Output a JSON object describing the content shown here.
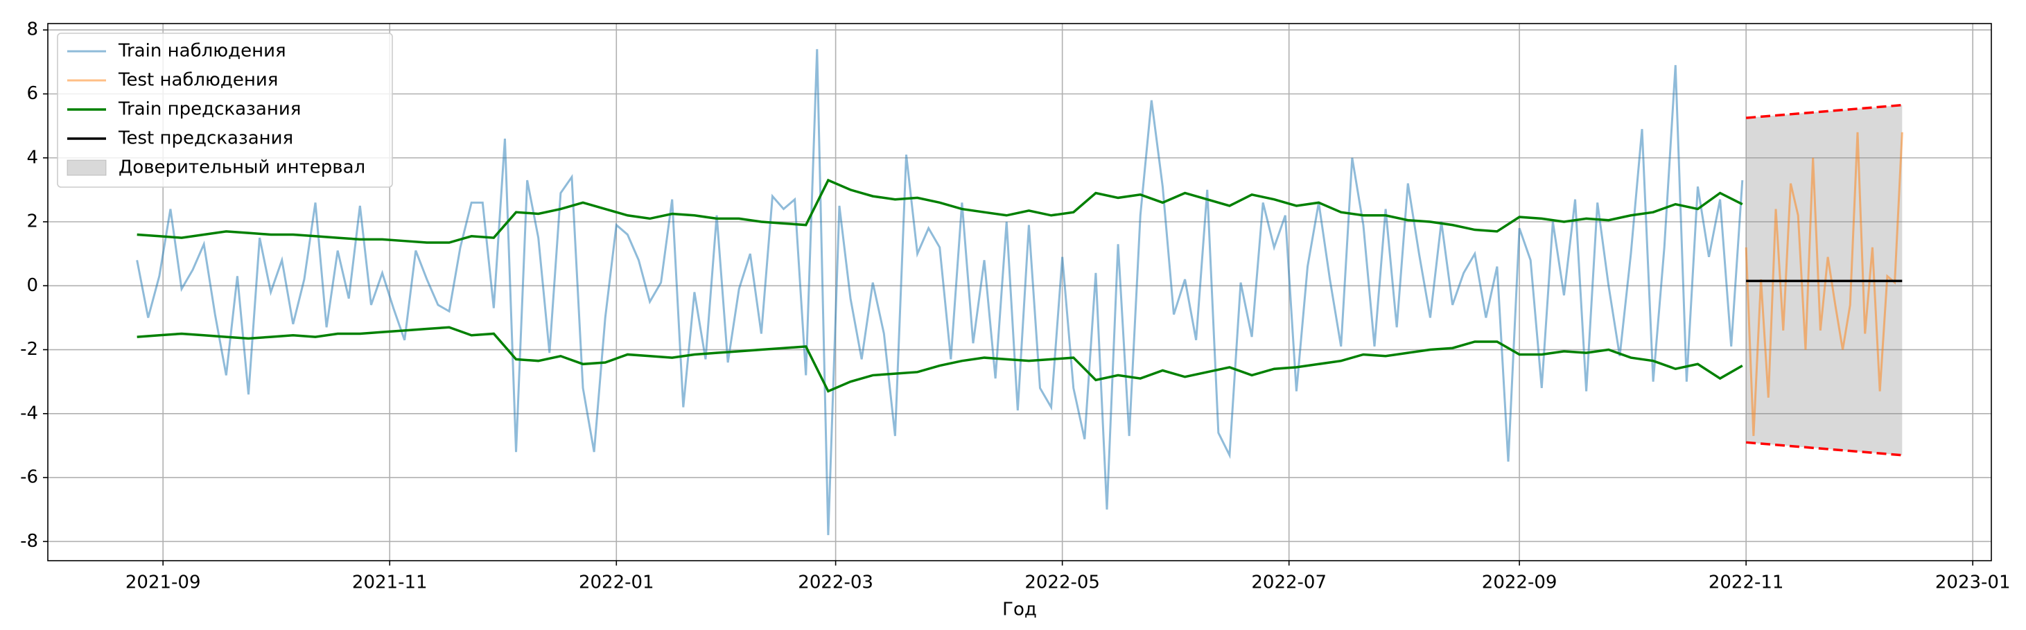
{
  "chart_data": {
    "type": "line",
    "xlabel": "Год",
    "xlim": [
      18840,
      19363
    ],
    "xticks": [
      {
        "value": 18871,
        "label": "2021-09"
      },
      {
        "value": 18932,
        "label": "2021-11"
      },
      {
        "value": 18993,
        "label": "2022-01"
      },
      {
        "value": 19052,
        "label": "2022-03"
      },
      {
        "value": 19113,
        "label": "2022-05"
      },
      {
        "value": 19174,
        "label": "2022-07"
      },
      {
        "value": 19236,
        "label": "2022-09"
      },
      {
        "value": 19297,
        "label": "2022-11"
      },
      {
        "value": 19358,
        "label": "2023-01"
      }
    ],
    "ylim": [
      -8.6,
      8.2
    ],
    "yticks": [
      -8,
      -6,
      -4,
      -2,
      0,
      2,
      4,
      6,
      8
    ],
    "grid": true,
    "legend": "upper left",
    "series": [
      {
        "name": "Train наблюдения",
        "color": "#1f77b4",
        "opacity": 0.5,
        "x": [
          18864,
          18867,
          18870,
          18873,
          18876,
          18879,
          18882,
          18885,
          18888,
          18891,
          18894,
          18897,
          18900,
          18903,
          18906,
          18909,
          18912,
          18915,
          18918,
          18921,
          18924,
          18927,
          18930,
          18933,
          18936,
          18939,
          18942,
          18945,
          18948,
          18951,
          18954,
          18957,
          18960,
          18963,
          18966,
          18969,
          18972,
          18975,
          18978,
          18981,
          18984,
          18987,
          18990,
          18993,
          18996,
          18999,
          19002,
          19005,
          19008,
          19011,
          19014,
          19017,
          19020,
          19023,
          19026,
          19029,
          19032,
          19035,
          19038,
          19041,
          19044,
          19047,
          19050,
          19053,
          19056,
          19059,
          19062,
          19065,
          19068,
          19071,
          19074,
          19077,
          19080,
          19083,
          19086,
          19089,
          19092,
          19095,
          19098,
          19101,
          19104,
          19107,
          19110,
          19113,
          19116,
          19119,
          19122,
          19125,
          19128,
          19131,
          19134,
          19137,
          19140,
          19143,
          19146,
          19149,
          19152,
          19155,
          19158,
          19161,
          19164,
          19167,
          19170,
          19173,
          19176,
          19179,
          19182,
          19185,
          19188,
          19191,
          19194,
          19197,
          19200,
          19203,
          19206,
          19209,
          19212,
          19215,
          19218,
          19221,
          19224,
          19227,
          19230,
          19233,
          19236,
          19239,
          19242,
          19245,
          19248,
          19251,
          19254,
          19257,
          19260,
          19263,
          19266,
          19269,
          19272,
          19275,
          19278,
          19281,
          19284,
          19287,
          19290,
          19293,
          19296
        ],
        "values": [
          0.8,
          -1.0,
          0.3,
          2.4,
          -0.1,
          0.5,
          1.3,
          -0.9,
          -2.8,
          0.3,
          -3.4,
          1.5,
          -0.2,
          0.8,
          -1.2,
          0.2,
          2.6,
          -1.3,
          1.1,
          -0.4,
          2.5,
          -0.6,
          0.4,
          -0.7,
          -1.7,
          1.1,
          0.2,
          -0.6,
          -0.8,
          1.2,
          2.6,
          2.6,
          -0.7,
          4.6,
          -5.2,
          3.3,
          1.5,
          -2.1,
          2.9,
          3.4,
          -3.2,
          -5.2,
          -1.0,
          1.9,
          1.6,
          0.8,
          -0.5,
          0.1,
          2.7,
          -3.8,
          -0.2,
          -2.3,
          2.2,
          -2.4,
          -0.1,
          1.0,
          -1.5,
          2.8,
          2.4,
          2.7,
          -2.8,
          7.4,
          -7.8,
          2.5,
          -0.4,
          -2.3,
          0.1,
          -1.5,
          -4.7,
          4.1,
          1.0,
          1.8,
          1.2,
          -2.3,
          2.6,
          -1.8,
          0.8,
          -2.9,
          2.0,
          -3.9,
          1.9,
          -3.2,
          -3.8,
          0.9,
          -3.2,
          -4.8,
          0.4,
          -7.0,
          1.3,
          -4.7,
          2.2,
          5.8,
          3.1,
          -0.9,
          0.2,
          -1.7,
          3.0,
          -4.6,
          -5.3,
          0.1,
          -1.6,
          2.6,
          1.2,
          2.2,
          -3.3,
          0.6,
          2.6,
          0.2,
          -1.9,
          4.0,
          1.9,
          -1.9,
          2.4,
          -1.3,
          3.2,
          1.0,
          -1.0,
          2.0,
          -0.6,
          0.4,
          1.0,
          -1.0,
          0.6,
          -5.5,
          1.8,
          0.8,
          -3.2,
          2.0,
          -0.3,
          2.7,
          -3.3,
          2.6,
          0.0,
          -2.2,
          1.0,
          4.9,
          -3.0,
          1.2,
          6.9,
          -3.0,
          3.1,
          0.9,
          2.7,
          -1.9,
          3.3
        ]
      },
      {
        "name": "Test наблюдения",
        "color": "#ff7f0e",
        "opacity": 0.5,
        "x": [
          19297,
          19299,
          19301,
          19303,
          19305,
          19307,
          19309,
          19311,
          19313,
          19315,
          19317,
          19319,
          19321,
          19323,
          19325,
          19327,
          19329,
          19331,
          19333,
          19335,
          19337,
          19339
        ],
        "values": [
          1.2,
          -4.7,
          0.2,
          -3.5,
          2.4,
          -1.4,
          3.2,
          2.2,
          -2.0,
          4.0,
          -1.4,
          0.9,
          -0.6,
          -2.0,
          -0.6,
          4.8,
          -1.5,
          1.2,
          -3.3,
          0.3,
          0.1,
          4.8
        ]
      },
      {
        "name": "Train предсказания",
        "color": "green",
        "opacity": 1,
        "x": [
          18864,
          18870,
          18876,
          18882,
          18888,
          18894,
          18900,
          18906,
          18912,
          18918,
          18924,
          18930,
          18936,
          18942,
          18948,
          18954,
          18960,
          18966,
          18972,
          18978,
          18984,
          18990,
          18996,
          19002,
          19008,
          19014,
          19020,
          19026,
          19032,
          19038,
          19044,
          19050,
          19056,
          19062,
          19068,
          19074,
          19080,
          19086,
          19092,
          19098,
          19104,
          19110,
          19116,
          19122,
          19128,
          19134,
          19140,
          19146,
          19152,
          19158,
          19164,
          19170,
          19176,
          19182,
          19188,
          19194,
          19200,
          19206,
          19212,
          19218,
          19224,
          19230,
          19236,
          19242,
          19248,
          19254,
          19260,
          19266,
          19272,
          19278,
          19284,
          19290,
          19296
        ],
        "values": [
          1.6,
          1.55,
          1.5,
          1.6,
          1.7,
          1.65,
          1.6,
          1.6,
          1.55,
          1.5,
          1.45,
          1.45,
          1.4,
          1.35,
          1.35,
          1.55,
          1.5,
          2.3,
          2.25,
          2.4,
          2.6,
          2.4,
          2.2,
          2.1,
          2.25,
          2.2,
          2.1,
          2.1,
          2.0,
          1.95,
          1.9,
          3.3,
          3.0,
          2.8,
          2.7,
          2.75,
          2.6,
          2.4,
          2.3,
          2.2,
          2.35,
          2.2,
          2.3,
          2.9,
          2.75,
          2.85,
          2.6,
          2.9,
          2.7,
          2.5,
          2.85,
          2.7,
          2.5,
          2.6,
          2.3,
          2.2,
          2.2,
          2.05,
          2.0,
          1.9,
          1.75,
          1.7,
          2.15,
          2.1,
          2.0,
          2.1,
          2.05,
          2.2,
          2.3,
          2.55,
          2.4,
          2.9,
          2.55
        ],
        "lower": [
          -1.6,
          -1.55,
          -1.5,
          -1.55,
          -1.6,
          -1.65,
          -1.6,
          -1.55,
          -1.6,
          -1.5,
          -1.5,
          -1.45,
          -1.4,
          -1.35,
          -1.3,
          -1.55,
          -1.5,
          -2.3,
          -2.35,
          -2.2,
          -2.45,
          -2.4,
          -2.15,
          -2.2,
          -2.25,
          -2.15,
          -2.1,
          -2.05,
          -2.0,
          -1.95,
          -1.9,
          -3.3,
          -3.0,
          -2.8,
          -2.75,
          -2.7,
          -2.5,
          -2.35,
          -2.25,
          -2.3,
          -2.35,
          -2.3,
          -2.25,
          -2.95,
          -2.8,
          -2.9,
          -2.65,
          -2.85,
          -2.7,
          -2.55,
          -2.8,
          -2.6,
          -2.55,
          -2.45,
          -2.35,
          -2.15,
          -2.2,
          -2.1,
          -2.0,
          -1.95,
          -1.75,
          -1.75,
          -2.15,
          -2.15,
          -2.05,
          -2.1,
          -2.0,
          -2.25,
          -2.35,
          -2.6,
          -2.45,
          -2.9,
          -2.5
        ]
      },
      {
        "name": "Test предсказания",
        "color": "black",
        "opacity": 1,
        "x": [
          19297,
          19339
        ],
        "values": [
          0.15,
          0.15
        ]
      }
    ],
    "interval": {
      "name": "Доверительный интервал",
      "color": "gray",
      "bound_color": "red",
      "x": [
        19297,
        19339
      ],
      "upper": [
        5.25,
        5.65
      ],
      "lower": [
        -4.9,
        -5.3
      ]
    }
  }
}
